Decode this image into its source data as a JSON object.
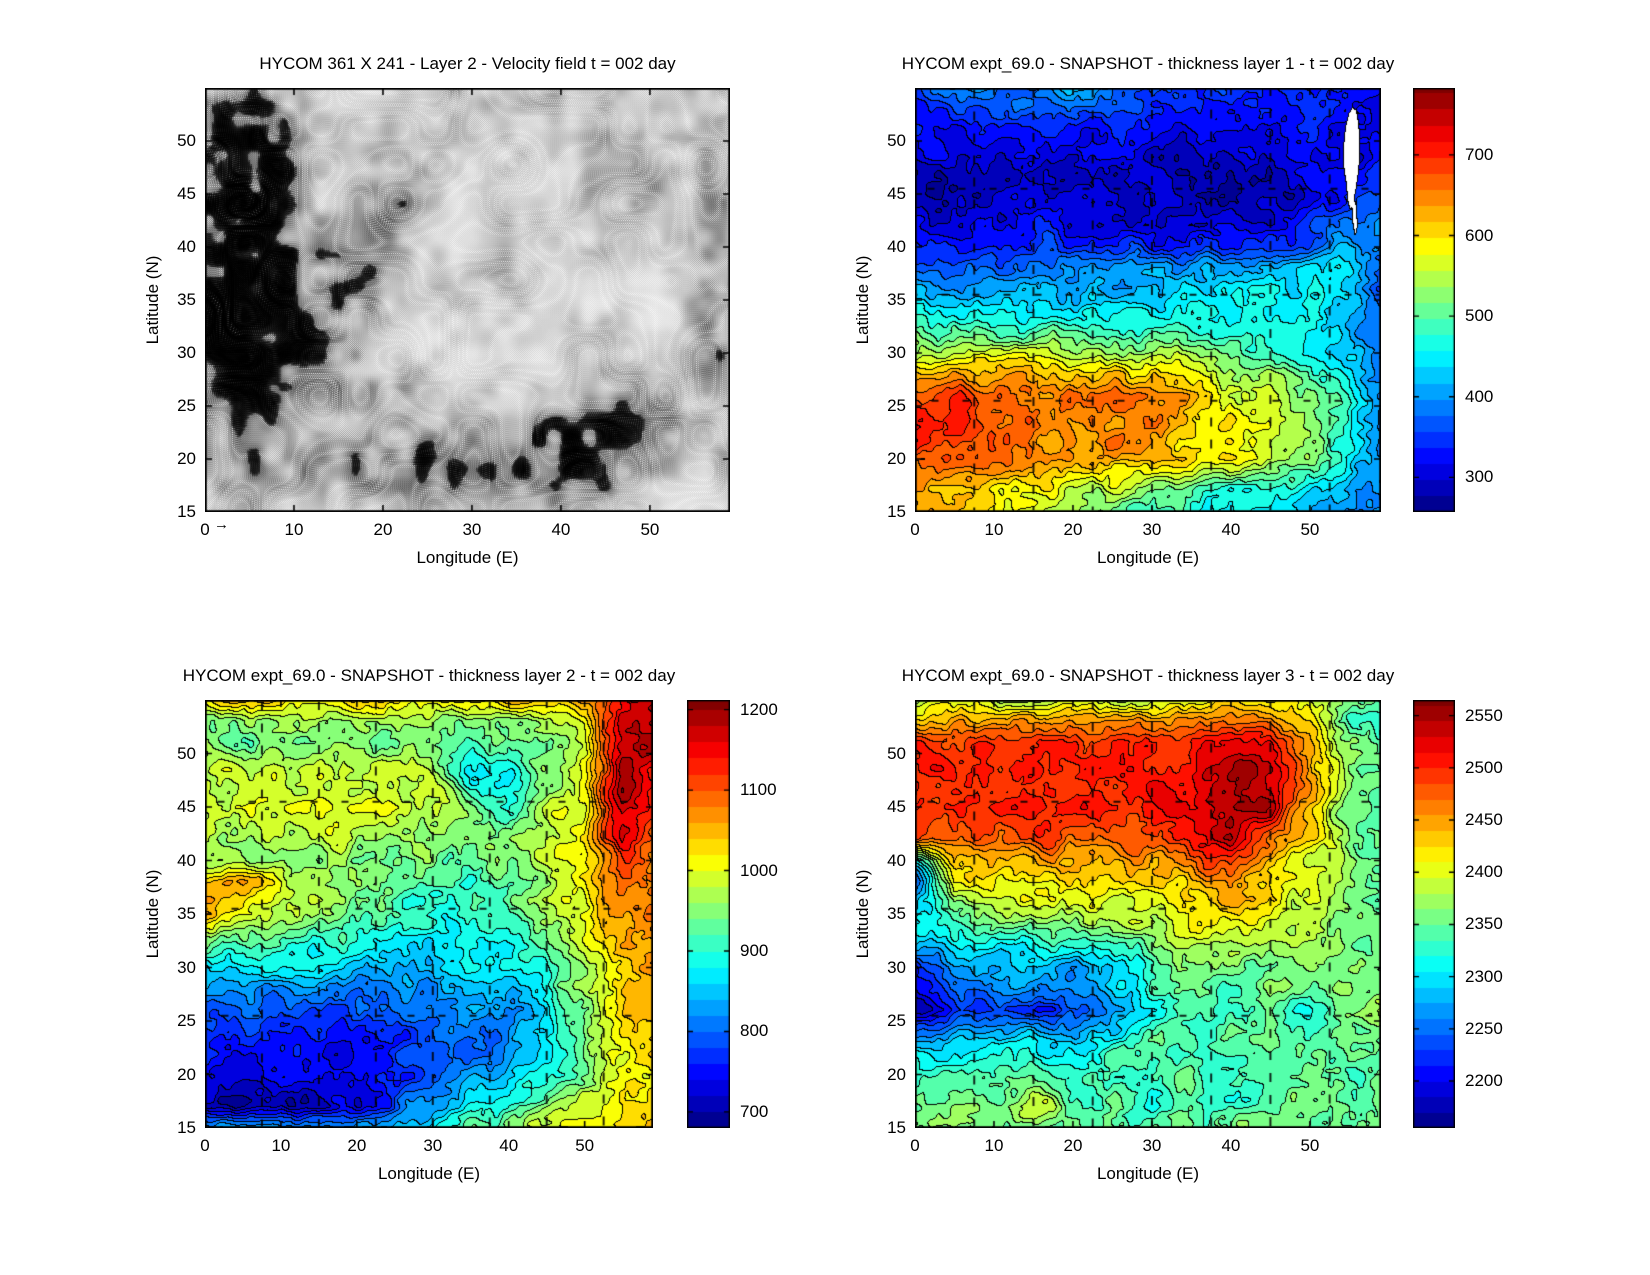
{
  "page": {
    "background": "#ffffff",
    "text_color": "#000000"
  },
  "chart_data": [
    {
      "type": "quiver",
      "title": "HYCOM 361 X 241 - Layer 2 - Velocity field  t = 002 day",
      "xlabel": "Longitude (E)",
      "ylabel": "Latitude (N)",
      "xlim": [
        0,
        59
      ],
      "ylim": [
        15,
        55
      ],
      "x_ticks": [
        0,
        10,
        20,
        30,
        40,
        50
      ],
      "y_ticks": [
        15,
        20,
        25,
        30,
        35,
        40,
        45,
        50
      ],
      "arrow_color": "#000000",
      "scale_arrow_label": "→",
      "description": "Dense black velocity arrows on white; darkest/strongest clusters along the western boundary (lat 25-50), patches along the southern edge and near the eastern boundary"
    },
    {
      "type": "contour",
      "title": "HYCOM expt_69.0 - SNAPSHOT - thickness layer 1 - t = 002 day",
      "xlabel": "Longitude (E)",
      "ylabel": "Latitude (N)",
      "xlim": [
        0,
        59
      ],
      "ylim": [
        15,
        55
      ],
      "x_ticks": [
        0,
        10,
        20,
        30,
        40,
        50
      ],
      "y_ticks": [
        15,
        20,
        25,
        30,
        35,
        40,
        45,
        50
      ],
      "colorbar_ticks": [
        300,
        400,
        500,
        600,
        700
      ],
      "clim": [
        257,
        783
      ],
      "level_step": 20,
      "x": [
        0,
        5,
        10,
        15,
        20,
        25,
        30,
        35,
        40,
        45,
        50,
        55,
        59
      ],
      "y": [
        55,
        53,
        51,
        48,
        45,
        42,
        40,
        38,
        35,
        33,
        30,
        28,
        26,
        23,
        20,
        17,
        15
      ],
      "values": [
        [
          370,
          390,
          400,
          410,
          420,
          400,
          370,
          350,
          340,
          350,
          340,
          330,
          320
        ],
        [
          340,
          350,
          355,
          360,
          355,
          350,
          340,
          335,
          340,
          345,
          340,
          330,
          330
        ],
        [
          320,
          325,
          320,
          325,
          320,
          325,
          320,
          315,
          320,
          330,
          340,
          310,
          330
        ],
        [
          300,
          305,
          300,
          305,
          300,
          305,
          300,
          295,
          290,
          300,
          320,
          300,
          340
        ],
        [
          290,
          280,
          295,
          300,
          295,
          300,
          295,
          290,
          280,
          285,
          310,
          330,
          360
        ],
        [
          310,
          315,
          320,
          325,
          320,
          315,
          310,
          305,
          310,
          320,
          340,
          380,
          400
        ],
        [
          330,
          340,
          350,
          355,
          350,
          345,
          340,
          335,
          340,
          350,
          370,
          420,
          390
        ],
        [
          390,
          370,
          380,
          385,
          390,
          395,
          400,
          405,
          410,
          420,
          430,
          450,
          380
        ],
        [
          420,
          430,
          435,
          430,
          425,
          430,
          435,
          440,
          445,
          450,
          445,
          430,
          370
        ],
        [
          480,
          470,
          465,
          470,
          475,
          470,
          465,
          460,
          455,
          450,
          445,
          420,
          365
        ],
        [
          560,
          545,
          550,
          555,
          550,
          545,
          540,
          525,
          505,
          485,
          465,
          430,
          375
        ],
        [
          620,
          640,
          630,
          620,
          625,
          620,
          610,
          580,
          555,
          525,
          495,
          450,
          380
        ],
        [
          680,
          690,
          665,
          655,
          660,
          655,
          645,
          615,
          585,
          555,
          520,
          465,
          385
        ],
        [
          730,
          700,
          670,
          660,
          655,
          650,
          640,
          615,
          590,
          560,
          525,
          470,
          395
        ],
        [
          660,
          680,
          660,
          645,
          640,
          635,
          625,
          605,
          580,
          550,
          520,
          465,
          395
        ],
        [
          640,
          620,
          605,
          585,
          565,
          545,
          525,
          505,
          480,
          460,
          440,
          420,
          390
        ],
        [
          625,
          605,
          585,
          560,
          540,
          515,
          490,
          470,
          450,
          430,
          420,
          405,
          385
        ]
      ],
      "masked_white_regions": [
        [
          [
            54.6,
            46.0
          ],
          [
            54.3,
            47.5
          ],
          [
            54.25,
            49.5
          ],
          [
            54.5,
            51.3
          ],
          [
            54.9,
            52.6
          ],
          [
            55.4,
            53.2
          ],
          [
            55.9,
            52.9
          ],
          [
            56.2,
            51.5
          ],
          [
            56.3,
            49.5
          ],
          [
            56.2,
            47.5
          ],
          [
            55.9,
            45.8
          ],
          [
            55.5,
            44.2
          ],
          [
            55.1,
            43.6
          ],
          [
            54.8,
            44.3
          ]
        ],
        [
          [
            55.3,
            44.0
          ],
          [
            55.45,
            42.2
          ],
          [
            55.75,
            41.0
          ],
          [
            56.0,
            42.0
          ],
          [
            55.9,
            43.8
          ],
          [
            55.6,
            44.6
          ]
        ]
      ],
      "seam_lines": {
        "vertical_lon": [
          7.5,
          15,
          22.5,
          30,
          37.5,
          45,
          52.5
        ],
        "horizontal_lat": [
          25.5,
          35.5,
          45.5
        ]
      }
    },
    {
      "type": "contour",
      "title": "HYCOM expt_69.0 - SNAPSHOT - thickness layer 2 - t = 002 day",
      "xlabel": "Longitude (E)",
      "ylabel": "Latitude (N)",
      "xlim": [
        0,
        59
      ],
      "ylim": [
        15,
        55
      ],
      "x_ticks": [
        0,
        10,
        20,
        30,
        40,
        50
      ],
      "y_ticks": [
        15,
        20,
        25,
        30,
        35,
        40,
        45,
        50
      ],
      "colorbar_ticks": [
        700,
        800,
        900,
        1000,
        1100,
        1200
      ],
      "clim": [
        680,
        1212
      ],
      "level_step": 20,
      "x": [
        0,
        5,
        10,
        15,
        20,
        25,
        30,
        35,
        40,
        45,
        50,
        55,
        59
      ],
      "y": [
        55,
        53,
        51,
        48,
        45,
        42,
        40,
        38,
        35,
        33,
        30,
        28,
        26,
        23,
        20,
        17,
        15
      ],
      "values": [
        [
          1040,
          1045,
          1040,
          1042,
          1040,
          1038,
          1035,
          1032,
          1040,
          1050,
          1060,
          1140,
          1180
        ],
        [
          960,
          950,
          958,
          952,
          950,
          953,
          950,
          945,
          958,
          980,
          1015,
          1165,
          1190
        ],
        [
          940,
          936,
          932,
          936,
          940,
          936,
          930,
          926,
          932,
          950,
          995,
          1180,
          1195
        ],
        [
          985,
          990,
          993,
          990,
          988,
          985,
          980,
          885,
          875,
          945,
          1000,
          1190,
          1150
        ],
        [
          992,
          1000,
          998,
          995,
          1000,
          995,
          990,
          945,
          905,
          982,
          1012,
          1185,
          1120
        ],
        [
          968,
          975,
          980,
          975,
          978,
          972,
          968,
          958,
          948,
          992,
          1025,
          1150,
          1100
        ],
        [
          955,
          962,
          966,
          960,
          950,
          945,
          940,
          936,
          942,
          990,
          1030,
          1110,
          1092
        ],
        [
          1055,
          1082,
          1002,
          972,
          950,
          930,
          910,
          906,
          922,
          962,
          1012,
          1080,
          1088
        ],
        [
          1042,
          1012,
          982,
          962,
          940,
          920,
          900,
          896,
          912,
          952,
          1002,
          1062,
          1082
        ],
        [
          962,
          942,
          932,
          922,
          912,
          892,
          880,
          876,
          892,
          932,
          992,
          1052,
          1072
        ],
        [
          882,
          872,
          866,
          860,
          856,
          850,
          856,
          862,
          872,
          902,
          972,
          1042,
          1062
        ],
        [
          840,
          830,
          825,
          820,
          820,
          825,
          830,
          840,
          858,
          892,
          958,
          1035,
          1055
        ],
        [
          800,
          792,
          786,
          782,
          786,
          792,
          800,
          815,
          832,
          872,
          945,
          1025,
          1048
        ],
        [
          768,
          758,
          752,
          748,
          758,
          768,
          782,
          802,
          822,
          862,
          932,
          1012,
          1042
        ],
        [
          744,
          728,
          740,
          734,
          744,
          762,
          792,
          822,
          842,
          872,
          932,
          1002,
          1032
        ],
        [
          718,
          700,
          720,
          712,
          732,
          782,
          832,
          882,
          922,
          952,
          982,
          1022,
          1042
        ],
        [
          830,
          820,
          826,
          822,
          832,
          852,
          882,
          922,
          952,
          972,
          1002,
          1032,
          1052
        ]
      ],
      "masked_white_regions": [],
      "seam_lines": {
        "vertical_lon": [
          7.5,
          15,
          22.5,
          30,
          37.5,
          45,
          52.5
        ],
        "horizontal_lat": [
          25.5,
          35.5,
          45.5
        ]
      }
    },
    {
      "type": "contour",
      "title": "HYCOM expt_69.0 - SNAPSHOT - thickness layer 3 - t = 002 day",
      "xlabel": "Longitude (E)",
      "ylabel": "Latitude (N)",
      "xlim": [
        0,
        59
      ],
      "ylim": [
        15,
        55
      ],
      "x_ticks": [
        0,
        10,
        20,
        30,
        40,
        50
      ],
      "y_ticks": [
        15,
        20,
        25,
        30,
        35,
        40,
        45,
        50
      ],
      "colorbar_ticks": [
        2200,
        2250,
        2300,
        2350,
        2400,
        2450,
        2500,
        2550
      ],
      "clim": [
        2155,
        2565
      ],
      "level_step": 15,
      "x": [
        0,
        5,
        10,
        15,
        20,
        25,
        30,
        35,
        40,
        45,
        50,
        55,
        59
      ],
      "y": [
        55,
        53,
        51,
        48,
        45,
        42,
        40,
        38,
        35,
        33,
        30,
        28,
        26,
        23,
        20,
        17,
        15
      ],
      "values": [
        [
          2390,
          2395,
          2390,
          2395,
          2390,
          2390,
          2395,
          2400,
          2410,
          2420,
          2400,
          2360,
          2350
        ],
        [
          2440,
          2445,
          2440,
          2445,
          2440,
          2445,
          2450,
          2460,
          2480,
          2470,
          2420,
          2330,
          2350
        ],
        [
          2490,
          2495,
          2490,
          2490,
          2495,
          2490,
          2495,
          2500,
          2520,
          2530,
          2440,
          2370,
          2355
        ],
        [
          2500,
          2505,
          2500,
          2505,
          2500,
          2505,
          2510,
          2520,
          2550,
          2540,
          2450,
          2370,
          2350
        ],
        [
          2505,
          2500,
          2505,
          2500,
          2505,
          2500,
          2510,
          2520,
          2555,
          2545,
          2440,
          2350,
          2340
        ],
        [
          2480,
          2485,
          2480,
          2485,
          2480,
          2485,
          2490,
          2510,
          2540,
          2480,
          2420,
          2360,
          2345
        ],
        [
          2300,
          2440,
          2450,
          2445,
          2450,
          2445,
          2450,
          2470,
          2500,
          2440,
          2400,
          2370,
          2350
        ],
        [
          2250,
          2420,
          2420,
          2415,
          2420,
          2415,
          2420,
          2430,
          2460,
          2420,
          2390,
          2370,
          2355
        ],
        [
          2280,
          2350,
          2380,
          2385,
          2390,
          2390,
          2395,
          2400,
          2420,
          2400,
          2380,
          2360,
          2350
        ],
        [
          2300,
          2320,
          2330,
          2340,
          2350,
          2360,
          2370,
          2400,
          2390,
          2380,
          2370,
          2360,
          2350
        ],
        [
          2230,
          2270,
          2260,
          2280,
          2270,
          2300,
          2330,
          2350,
          2360,
          2350,
          2380,
          2360,
          2350
        ],
        [
          2200,
          2250,
          2270,
          2260,
          2280,
          2290,
          2340,
          2350,
          2340,
          2360,
          2350,
          2370,
          2350
        ],
        [
          2180,
          2210,
          2230,
          2220,
          2230,
          2250,
          2300,
          2330,
          2350,
          2340,
          2310,
          2350,
          2380
        ],
        [
          2280,
          2290,
          2300,
          2310,
          2300,
          2320,
          2340,
          2350,
          2340,
          2350,
          2330,
          2360,
          2350
        ],
        [
          2330,
          2340,
          2330,
          2340,
          2330,
          2340,
          2330,
          2350,
          2310,
          2340,
          2350,
          2340,
          2350
        ],
        [
          2350,
          2370,
          2360,
          2400,
          2350,
          2340,
          2320,
          2350,
          2340,
          2330,
          2360,
          2350,
          2350
        ],
        [
          2350,
          2355,
          2350,
          2355,
          2350,
          2355,
          2350,
          2350,
          2355,
          2350,
          2350,
          2355,
          2350
        ]
      ],
      "masked_white_regions": [],
      "seam_lines": {
        "vertical_lon": [
          7.5,
          15,
          22.5,
          30,
          37.5,
          45,
          52.5
        ],
        "horizontal_lat": [
          25.5,
          35.5,
          45.5
        ]
      }
    }
  ]
}
